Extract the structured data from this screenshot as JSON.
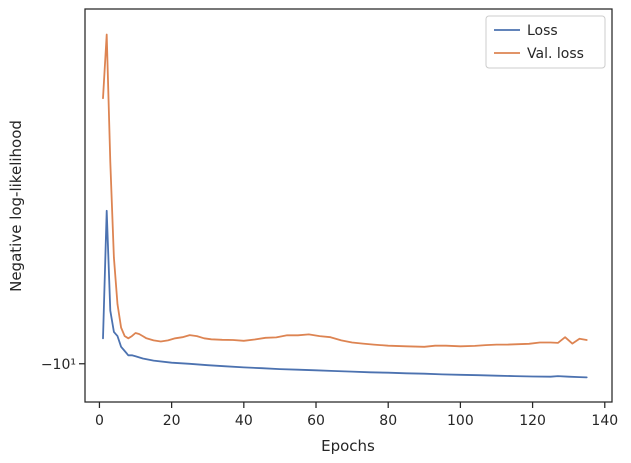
{
  "chart_data": {
    "type": "line",
    "xlabel": "Epochs",
    "ylabel": "Negative log-likelihood",
    "xlim": [
      -4,
      142
    ],
    "ylim": [
      -10.18,
      -8.33
    ],
    "x_ticks": [
      0,
      20,
      40,
      60,
      80,
      100,
      120,
      140
    ],
    "x_tick_labels": [
      "0",
      "20",
      "40",
      "60",
      "80",
      "100",
      "120",
      "140"
    ],
    "y_ticks": [
      -10
    ],
    "y_tick_labels": [
      "−10¹"
    ],
    "grid": false,
    "legend": {
      "placement": "top-right",
      "entries": [
        "Loss",
        "Val. loss"
      ]
    },
    "series": [
      {
        "name": "Loss",
        "color": "#4c72b0",
        "points": [
          [
            1,
            -9.88
          ],
          [
            2,
            -9.28
          ],
          [
            3,
            -9.75
          ],
          [
            4,
            -9.85
          ],
          [
            5,
            -9.87
          ],
          [
            6,
            -9.92
          ],
          [
            7,
            -9.94
          ],
          [
            8,
            -9.96
          ],
          [
            9,
            -9.96
          ],
          [
            10,
            -9.965
          ],
          [
            12,
            -9.975
          ],
          [
            15,
            -9.985
          ],
          [
            20,
            -9.995
          ],
          [
            25,
            -10.0
          ],
          [
            30,
            -10.007
          ],
          [
            35,
            -10.012
          ],
          [
            40,
            -10.017
          ],
          [
            45,
            -10.021
          ],
          [
            50,
            -10.025
          ],
          [
            55,
            -10.028
          ],
          [
            60,
            -10.031
          ],
          [
            65,
            -10.034
          ],
          [
            70,
            -10.037
          ],
          [
            75,
            -10.04
          ],
          [
            80,
            -10.042
          ],
          [
            85,
            -10.045
          ],
          [
            90,
            -10.047
          ],
          [
            95,
            -10.05
          ],
          [
            100,
            -10.052
          ],
          [
            105,
            -10.054
          ],
          [
            110,
            -10.056
          ],
          [
            115,
            -10.058
          ],
          [
            120,
            -10.06
          ],
          [
            125,
            -10.061
          ],
          [
            127,
            -10.058
          ],
          [
            130,
            -10.061
          ],
          [
            133,
            -10.063
          ],
          [
            135,
            -10.064
          ]
        ]
      },
      {
        "name": "Val. loss",
        "color": "#dd8452",
        "points": [
          [
            1,
            -8.75
          ],
          [
            2,
            -8.45
          ],
          [
            3,
            -9.05
          ],
          [
            4,
            -9.5
          ],
          [
            5,
            -9.72
          ],
          [
            6,
            -9.83
          ],
          [
            7,
            -9.87
          ],
          [
            8,
            -9.88
          ],
          [
            9,
            -9.87
          ],
          [
            10,
            -9.855
          ],
          [
            11,
            -9.86
          ],
          [
            12,
            -9.87
          ],
          [
            13,
            -9.88
          ],
          [
            15,
            -9.89
          ],
          [
            17,
            -9.895
          ],
          [
            19,
            -9.89
          ],
          [
            21,
            -9.88
          ],
          [
            23,
            -9.875
          ],
          [
            25,
            -9.865
          ],
          [
            27,
            -9.87
          ],
          [
            29,
            -9.88
          ],
          [
            31,
            -9.885
          ],
          [
            34,
            -9.887
          ],
          [
            37,
            -9.888
          ],
          [
            40,
            -9.892
          ],
          [
            43,
            -9.886
          ],
          [
            46,
            -9.878
          ],
          [
            49,
            -9.876
          ],
          [
            52,
            -9.866
          ],
          [
            55,
            -9.866
          ],
          [
            58,
            -9.862
          ],
          [
            61,
            -9.87
          ],
          [
            64,
            -9.875
          ],
          [
            67,
            -9.89
          ],
          [
            70,
            -9.9
          ],
          [
            73,
            -9.905
          ],
          [
            76,
            -9.91
          ],
          [
            80,
            -9.915
          ],
          [
            85,
            -9.918
          ],
          [
            90,
            -9.92
          ],
          [
            93,
            -9.915
          ],
          [
            96,
            -9.915
          ],
          [
            100,
            -9.918
          ],
          [
            104,
            -9.916
          ],
          [
            107,
            -9.912
          ],
          [
            110,
            -9.91
          ],
          [
            113,
            -9.91
          ],
          [
            116,
            -9.908
          ],
          [
            119,
            -9.906
          ],
          [
            122,
            -9.9
          ],
          [
            125,
            -9.9
          ],
          [
            127,
            -9.902
          ],
          [
            129,
            -9.875
          ],
          [
            131,
            -9.905
          ],
          [
            133,
            -9.882
          ],
          [
            135,
            -9.888
          ]
        ]
      }
    ]
  }
}
